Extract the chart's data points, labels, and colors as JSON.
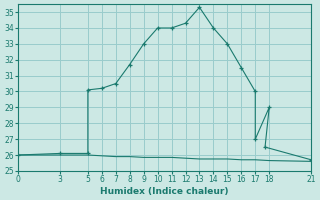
{
  "xlabel": "Humidex (Indice chaleur)",
  "bg_color": "#cce8e4",
  "grid_color": "#99cccc",
  "line_color": "#1a7a6e",
  "xlim": [
    0,
    21
  ],
  "ylim": [
    25,
    35.5
  ],
  "xticks": [
    0,
    3,
    5,
    6,
    7,
    8,
    9,
    10,
    11,
    12,
    13,
    14,
    15,
    16,
    17,
    18,
    21
  ],
  "yticks": [
    25,
    26,
    27,
    28,
    29,
    30,
    31,
    32,
    33,
    34,
    35
  ],
  "main_x": [
    0,
    3,
    5,
    5,
    6,
    7,
    8,
    9,
    10,
    11,
    12,
    13,
    14,
    15,
    16,
    17,
    17,
    18,
    17.7,
    21
  ],
  "main_y": [
    26.0,
    26.1,
    26.1,
    30.1,
    30.2,
    30.5,
    31.7,
    33.0,
    34.0,
    34.0,
    34.3,
    35.3,
    34.0,
    33.0,
    31.5,
    30.0,
    27.0,
    29.0,
    26.5,
    25.7
  ],
  "flat_x": [
    0,
    3,
    4,
    5,
    6,
    7,
    8,
    9,
    10,
    11,
    12,
    13,
    14,
    15,
    16,
    17,
    18,
    21
  ],
  "flat_y": [
    26.0,
    26.0,
    26.0,
    26.0,
    25.95,
    25.9,
    25.9,
    25.85,
    25.85,
    25.85,
    25.8,
    25.75,
    25.75,
    25.75,
    25.7,
    25.7,
    25.65,
    25.6
  ]
}
